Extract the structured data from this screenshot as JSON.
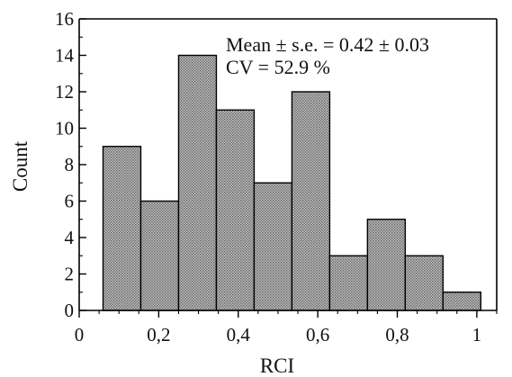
{
  "chart_data": {
    "type": "histogram",
    "title": "",
    "xlabel": "RCI",
    "ylabel": "Count",
    "xlim": [
      0,
      1.05
    ],
    "ylim": [
      0,
      16
    ],
    "x_ticks": [
      0,
      0.2,
      0.4,
      0.6,
      0.8,
      1
    ],
    "x_tick_labels": [
      "0",
      "0,2",
      "0,4",
      "0,6",
      "0,8",
      "1"
    ],
    "x_minor_step": 0.05,
    "y_ticks": [
      0,
      2,
      4,
      6,
      8,
      10,
      12,
      14,
      16
    ],
    "y_tick_labels": [
      "0",
      "2",
      "4",
      "6",
      "8",
      "10",
      "12",
      "14",
      "16"
    ],
    "y_minor_step": 1,
    "grid": false,
    "bins": [
      {
        "start": 0.06,
        "end": 0.155,
        "count": 9
      },
      {
        "start": 0.155,
        "end": 0.25,
        "count": 6
      },
      {
        "start": 0.25,
        "end": 0.345,
        "count": 14
      },
      {
        "start": 0.345,
        "end": 0.44,
        "count": 11
      },
      {
        "start": 0.44,
        "end": 0.535,
        "count": 7
      },
      {
        "start": 0.535,
        "end": 0.63,
        "count": 12
      },
      {
        "start": 0.63,
        "end": 0.725,
        "count": 3
      },
      {
        "start": 0.725,
        "end": 0.82,
        "count": 5
      },
      {
        "start": 0.82,
        "end": 0.915,
        "count": 3
      },
      {
        "start": 0.915,
        "end": 1.01,
        "count": 1
      }
    ],
    "annotations": [
      "Mean ± s.e. = 0.42 ± 0.03",
      "CV = 52.9 %"
    ],
    "annotation_placement": "top-right",
    "bar_fill": "#9a9a9a",
    "bar_edge": "#000000"
  }
}
